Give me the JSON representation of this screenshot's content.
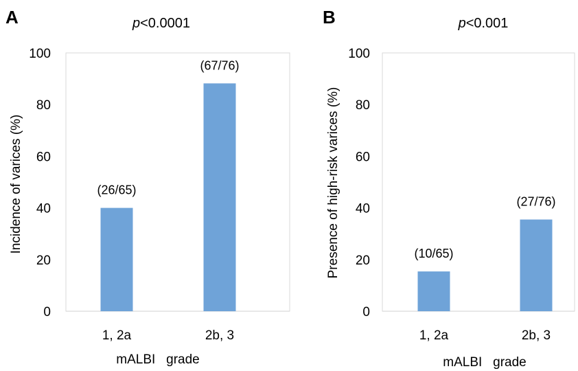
{
  "chart_data": [
    {
      "type": "bar",
      "panel_label": "A",
      "title_prefix": "p",
      "title_rest": "<0.0001",
      "categories": [
        "1, 2a",
        "2b, 3"
      ],
      "values": [
        40,
        88.2
      ],
      "data_labels": [
        "(26/65)",
        "(67/76)"
      ],
      "xlabel": "mALBI   grade",
      "ylabel": "Incidence of varices (%)",
      "ylim": [
        0,
        100
      ],
      "yticks": [
        "0",
        "20",
        "40",
        "60",
        "80",
        "100"
      ],
      "grid": false,
      "bar_color": "#6fa3d8"
    },
    {
      "type": "bar",
      "panel_label": "B",
      "title_prefix": "p",
      "title_rest": "<0.001",
      "categories": [
        "1, 2a",
        "2b, 3"
      ],
      "values": [
        15.4,
        35.5
      ],
      "data_labels": [
        "(10/65)",
        "(27/76)"
      ],
      "xlabel": "mALBI   grade",
      "ylabel": "Presence of high-risk varices (%)",
      "ylim": [
        0,
        100
      ],
      "yticks": [
        "0",
        "20",
        "40",
        "60",
        "80",
        "100"
      ],
      "grid": false,
      "bar_color": "#6fa3d8"
    }
  ]
}
